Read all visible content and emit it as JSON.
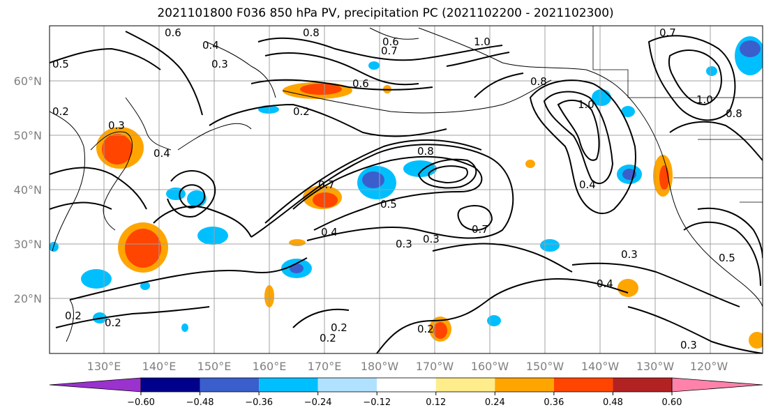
{
  "title": "2021101800 F036 850 hPa PV, precipitation PC (2021102200 - 2021102300)",
  "lat_labels": [
    "60°N",
    "50°N",
    "40°N",
    "30°N",
    "20°N"
  ],
  "lon_labels": [
    "130°E",
    "140°E",
    "150°E",
    "160°E",
    "170°E",
    "180°W",
    "170°W",
    "160°W",
    "150°W",
    "140°W",
    "130°W",
    "120°W"
  ],
  "contour_labels": [
    "0.8",
    "0.6",
    "0.7",
    "0.4",
    "0.3",
    "0.5",
    "0.2",
    "0.6",
    "1.0",
    "0.8",
    "0.2",
    "0.7",
    "0.8",
    "1.0",
    "1.0",
    "0.7",
    "0.8",
    "0.5",
    "0.4",
    "0.3",
    "0.3",
    "0.3",
    "0.2",
    "0.2",
    "0.2",
    "0.2",
    "0.3",
    "0.4",
    "0.7",
    "0.4",
    "0.3",
    "0.2",
    "0.6",
    "0.4",
    "0.5"
  ],
  "colorbar": {
    "colors": [
      "#9a32cd",
      "#00008b",
      "#3a5fcd",
      "#00bfff",
      "#b0e2ff",
      "#ffffff",
      "#ffec8b",
      "#ffa500",
      "#ff4500",
      "#b22222",
      "#ff82ab"
    ],
    "tick_labels": [
      "−0.60",
      "−0.48",
      "−0.36",
      "−0.24",
      "−0.12",
      "0.12",
      "0.24",
      "0.36",
      "0.48",
      "0.60"
    ]
  },
  "colors": {
    "contour": "#000000",
    "grid": "#a0a0a0",
    "coast": "#000000"
  }
}
